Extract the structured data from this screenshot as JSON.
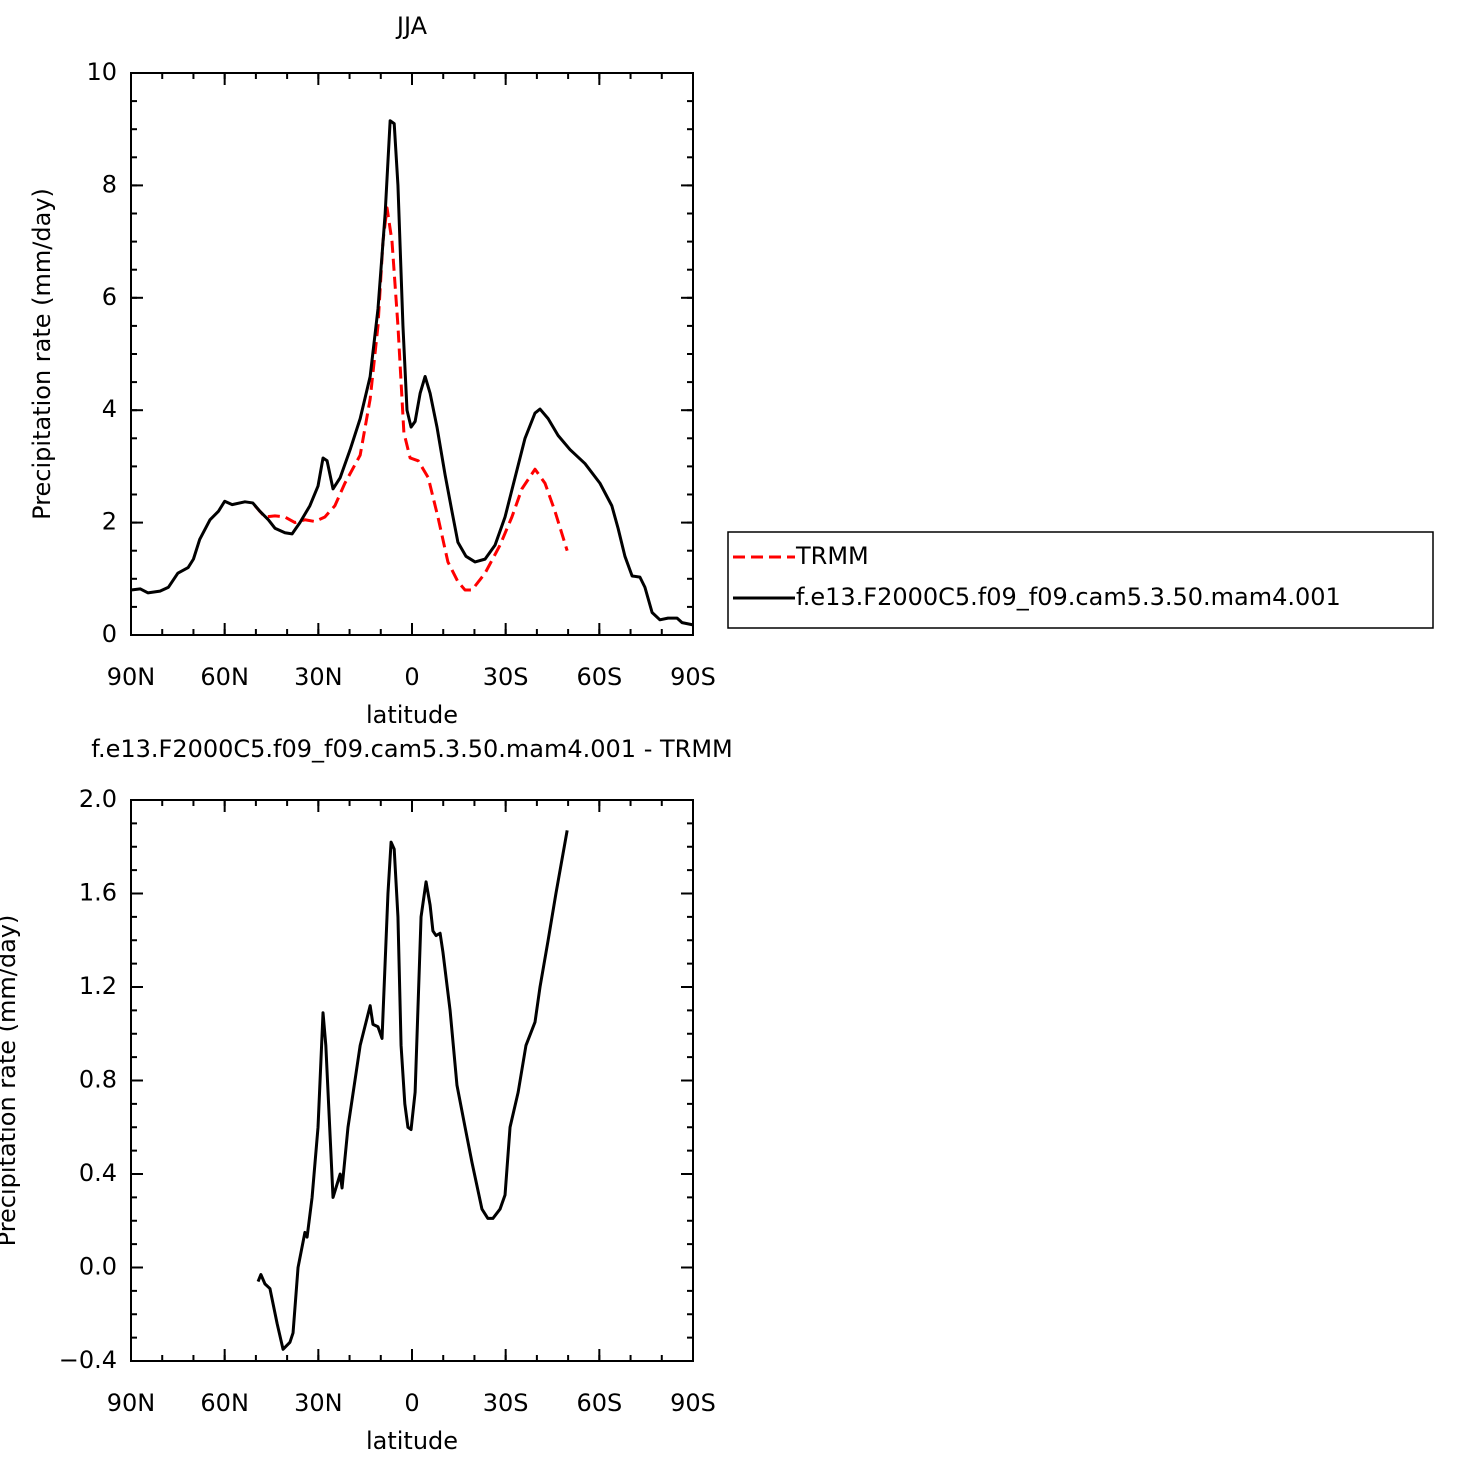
{
  "chart_data": [
    {
      "type": "line",
      "title": "JJA",
      "xlabel": "latitude",
      "ylabel": "Precipitation rate (mm/day)",
      "xlim": [
        90,
        -90
      ],
      "xticks": [
        {
          "value": 90,
          "label": "90N"
        },
        {
          "value": 60,
          "label": "60N"
        },
        {
          "value": 30,
          "label": "30N"
        },
        0,
        {
          "value": -30,
          "label": "30S"
        },
        {
          "value": -60,
          "label": "60S"
        },
        {
          "value": -90,
          "label": "90S"
        }
      ],
      "ylim": [
        0,
        10
      ],
      "yticks": [
        0,
        2,
        4,
        6,
        8,
        10
      ],
      "legend": "right",
      "series": [
        {
          "name": "TRMM",
          "color": "#ff0000",
          "linestyle": "dashed",
          "x": [
            50.3,
            47.1,
            43.9,
            40.7,
            37.5,
            34.3,
            31.1,
            27.9,
            24.7,
            21.5,
            16.6,
            13.4,
            10.9,
            9.3,
            8,
            6.4,
            4.5,
            2.6,
            0.6,
            -2,
            -5.2,
            -8.3,
            -11.5,
            -14.7,
            -17,
            -19.2,
            -23.4,
            -28.2,
            -32,
            -35.2,
            -39.4,
            -42.6,
            -45.8,
            -49.7
          ],
          "values": [
            2.3,
            2.1,
            2.12,
            2.1,
            2.0,
            2.05,
            2.02,
            2.1,
            2.3,
            2.7,
            3.2,
            4.2,
            5.5,
            7.0,
            7.6,
            7.0,
            5.5,
            3.6,
            3.15,
            3.1,
            2.8,
            2.1,
            1.3,
            0.95,
            0.8,
            0.8,
            1.1,
            1.6,
            2.1,
            2.6,
            2.95,
            2.7,
            2.2,
            1.5
          ]
        },
        {
          "name": "f.e13.F2000C5.f09_f09.cam5.3.50.mam4.001",
          "color": "#000000",
          "linestyle": "solid",
          "x": [
            90,
            87,
            84.6,
            80.7,
            78,
            75,
            71.7,
            70,
            68,
            64.7,
            62,
            60,
            57.6,
            53.5,
            51,
            48.7,
            46,
            43.9,
            40.7,
            38.4,
            35.9,
            32.7,
            30.1,
            28.5,
            27.2,
            25.3,
            23,
            19.8,
            16.6,
            13.4,
            10.9,
            8.6,
            7,
            5.7,
            4.5,
            2.9,
            1.6,
            0.3,
            -1,
            -2.6,
            -4.2,
            -5.8,
            -8,
            -10.6,
            -12.8,
            -14.7,
            -17.3,
            -20.2,
            -23.4,
            -26.6,
            -29.8,
            -33,
            -36.2,
            -39.4,
            -41,
            -43.6,
            -46.8,
            -50.6,
            -55.4,
            -60.2,
            -64,
            -66,
            -68.2,
            -70.5,
            -73,
            -74.6,
            -76.9,
            -79.4,
            -82,
            -84.9,
            -86.5,
            -90
          ],
          "values": [
            0.8,
            0.82,
            0.75,
            0.78,
            0.85,
            1.1,
            1.2,
            1.35,
            1.7,
            2.05,
            2.2,
            2.38,
            2.32,
            2.37,
            2.35,
            2.2,
            2.05,
            1.9,
            1.82,
            1.8,
            2.0,
            2.3,
            2.65,
            3.15,
            3.1,
            2.6,
            2.8,
            3.3,
            3.85,
            4.6,
            5.8,
            7.5,
            9.15,
            9.1,
            8.0,
            5.5,
            4.0,
            3.7,
            3.8,
            4.3,
            4.6,
            4.3,
            3.7,
            2.85,
            2.2,
            1.65,
            1.4,
            1.3,
            1.35,
            1.6,
            2.1,
            2.8,
            3.5,
            3.95,
            4.02,
            3.85,
            3.55,
            3.3,
            3.05,
            2.7,
            2.3,
            1.9,
            1.4,
            1.05,
            1.03,
            0.85,
            0.4,
            0.27,
            0.3,
            0.3,
            0.22,
            0.18
          ]
        }
      ]
    },
    {
      "type": "line",
      "title": "f.e13.F2000C5.f09_f09.cam5.3.50.mam4.001 - TRMM",
      "xlabel": "latitude",
      "ylabel": "Precipitation rate (mm/day)",
      "xlim": [
        90,
        -90
      ],
      "xticks": [
        {
          "value": 90,
          "label": "90N"
        },
        {
          "value": 60,
          "label": "60N"
        },
        {
          "value": 30,
          "label": "30N"
        },
        0,
        {
          "value": -30,
          "label": "30S"
        },
        {
          "value": -60,
          "label": "60S"
        },
        {
          "value": -90,
          "label": "90S"
        }
      ],
      "ylim": [
        -0.4,
        2.0
      ],
      "yticks": [
        {
          "value": -0.4,
          "label": "−0.4"
        },
        {
          "value": 0,
          "label": "0.0"
        },
        0.4,
        0.8,
        1.2,
        1.6,
        {
          "value": 2,
          "label": "2.0"
        }
      ],
      "series": [
        {
          "color": "#000000",
          "linestyle": "solid",
          "x": [
            49.3,
            48.4,
            47.1,
            45.5,
            43.2,
            41.3,
            39.1,
            38.1,
            36.5,
            34.3,
            33.6,
            32,
            30.1,
            28.5,
            27.6,
            25.3,
            23,
            22.4,
            20.5,
            16.6,
            13.4,
            12.5,
            10.9,
            9.6,
            7.7,
            6.7,
            5.7,
            4.5,
            3.5,
            2.3,
            1.3,
            0.3,
            -1,
            -2.9,
            -4.5,
            -5.8,
            -6.7,
            -7.7,
            -9,
            -9.9,
            -12.2,
            -14.4,
            -17,
            -19.2,
            -22.4,
            -24.3,
            -25.9,
            -28.2,
            -29.8,
            -31.4,
            -34,
            -36.5,
            -39.4,
            -41,
            -43.6,
            -46.1,
            -49.7
          ],
          "values": [
            -0.06,
            -0.03,
            -0.07,
            -0.09,
            -0.24,
            -0.35,
            -0.32,
            -0.28,
            0.0,
            0.15,
            0.13,
            0.3,
            0.6,
            1.09,
            0.95,
            0.3,
            0.4,
            0.34,
            0.6,
            0.95,
            1.12,
            1.04,
            1.03,
            0.98,
            1.6,
            1.82,
            1.79,
            1.5,
            0.95,
            0.7,
            0.6,
            0.59,
            0.75,
            1.5,
            1.65,
            1.55,
            1.44,
            1.42,
            1.43,
            1.35,
            1.1,
            0.78,
            0.6,
            0.45,
            0.25,
            0.21,
            0.21,
            0.25,
            0.31,
            0.6,
            0.75,
            0.95,
            1.05,
            1.2,
            1.4,
            1.6,
            1.87
          ]
        }
      ]
    }
  ]
}
